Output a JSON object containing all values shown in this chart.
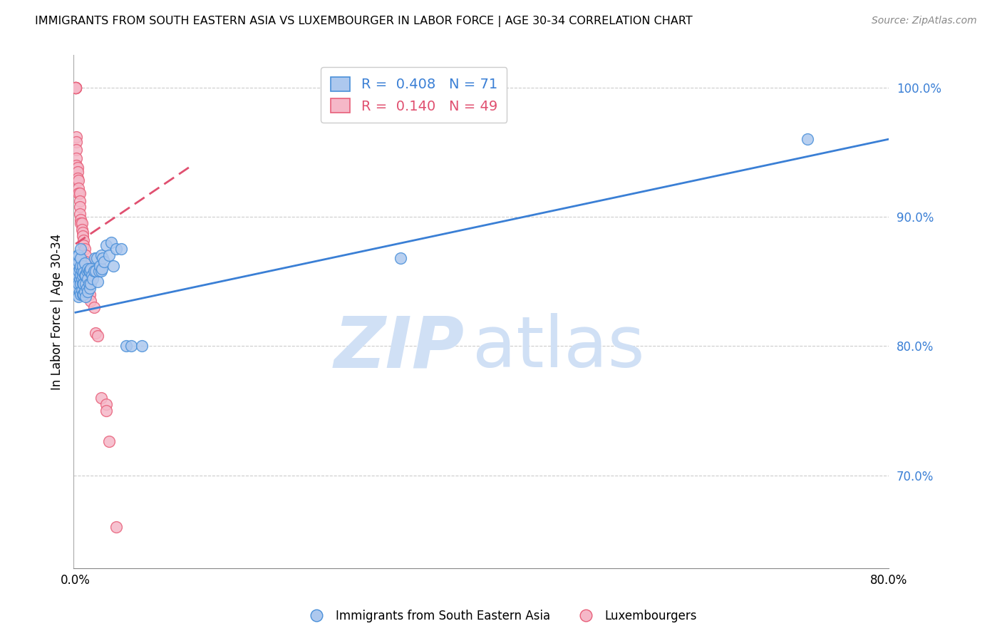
{
  "title": "IMMIGRANTS FROM SOUTH EASTERN ASIA VS LUXEMBOURGER IN LABOR FORCE | AGE 30-34 CORRELATION CHART",
  "source": "Source: ZipAtlas.com",
  "ylabel": "In Labor Force | Age 30-34",
  "right_yticks": [
    0.7,
    0.8,
    0.9,
    1.0
  ],
  "right_yticklabels": [
    "70.0%",
    "80.0%",
    "90.0%",
    "100.0%"
  ],
  "xlim": [
    -0.002,
    0.8
  ],
  "ylim": [
    0.628,
    1.025
  ],
  "xtick_positions": [
    0.0,
    0.1,
    0.2,
    0.3,
    0.4,
    0.5,
    0.6,
    0.7,
    0.8
  ],
  "xticklabels": [
    "0.0%",
    "",
    "",
    "",
    "",
    "",
    "",
    "",
    "80.0%"
  ],
  "blue_R": 0.408,
  "blue_N": 71,
  "pink_R": 0.14,
  "pink_N": 49,
  "blue_fill": "#adc8ee",
  "pink_fill": "#f5b8c8",
  "blue_edge": "#4a90d9",
  "pink_edge": "#e8607a",
  "legend_label_blue": "Immigrants from South Eastern Asia",
  "legend_label_pink": "Luxembourgers",
  "watermark_zip": "ZIP",
  "watermark_atlas": "atlas",
  "watermark_color": "#d0e0f5",
  "blue_line_color": "#3a7fd5",
  "pink_line_color": "#e05070",
  "blue_x": [
    0.001,
    0.001,
    0.002,
    0.002,
    0.002,
    0.003,
    0.003,
    0.003,
    0.003,
    0.003,
    0.004,
    0.004,
    0.004,
    0.005,
    0.005,
    0.005,
    0.005,
    0.005,
    0.005,
    0.006,
    0.006,
    0.006,
    0.007,
    0.007,
    0.007,
    0.007,
    0.008,
    0.008,
    0.008,
    0.009,
    0.009,
    0.009,
    0.01,
    0.01,
    0.01,
    0.011,
    0.011,
    0.012,
    0.012,
    0.012,
    0.013,
    0.013,
    0.014,
    0.014,
    0.015,
    0.015,
    0.016,
    0.017,
    0.018,
    0.019,
    0.02,
    0.021,
    0.022,
    0.023,
    0.024,
    0.025,
    0.025,
    0.026,
    0.027,
    0.028,
    0.03,
    0.033,
    0.035,
    0.037,
    0.04,
    0.045,
    0.05,
    0.055,
    0.065,
    0.32,
    0.72
  ],
  "blue_y": [
    0.853,
    0.862,
    0.845,
    0.855,
    0.87,
    0.838,
    0.848,
    0.858,
    0.865,
    0.87,
    0.842,
    0.852,
    0.86,
    0.84,
    0.848,
    0.855,
    0.862,
    0.868,
    0.875,
    0.843,
    0.852,
    0.858,
    0.84,
    0.848,
    0.855,
    0.862,
    0.84,
    0.848,
    0.857,
    0.842,
    0.855,
    0.864,
    0.838,
    0.848,
    0.855,
    0.845,
    0.858,
    0.842,
    0.852,
    0.86,
    0.848,
    0.858,
    0.845,
    0.858,
    0.848,
    0.86,
    0.855,
    0.852,
    0.858,
    0.868,
    0.858,
    0.868,
    0.85,
    0.858,
    0.862,
    0.858,
    0.87,
    0.86,
    0.868,
    0.865,
    0.878,
    0.87,
    0.88,
    0.862,
    0.875,
    0.875,
    0.8,
    0.8,
    0.8,
    0.868,
    0.96
  ],
  "pink_x": [
    0.0,
    0.0,
    0.0,
    0.0,
    0.0,
    0.0,
    0.0,
    0.0,
    0.0,
    0.0,
    0.001,
    0.001,
    0.001,
    0.001,
    0.001,
    0.002,
    0.002,
    0.002,
    0.003,
    0.003,
    0.003,
    0.004,
    0.004,
    0.004,
    0.004,
    0.005,
    0.005,
    0.006,
    0.006,
    0.007,
    0.007,
    0.008,
    0.008,
    0.009,
    0.01,
    0.01,
    0.011,
    0.012,
    0.013,
    0.014,
    0.015,
    0.018,
    0.02,
    0.022,
    0.025,
    0.03,
    0.03,
    0.033,
    0.04
  ],
  "pink_y": [
    1.0,
    1.0,
    1.0,
    1.0,
    1.0,
    1.0,
    1.0,
    1.0,
    1.0,
    1.0,
    0.962,
    0.958,
    0.952,
    0.945,
    0.94,
    0.938,
    0.935,
    0.93,
    0.928,
    0.922,
    0.918,
    0.918,
    0.912,
    0.908,
    0.902,
    0.898,
    0.895,
    0.895,
    0.89,
    0.888,
    0.885,
    0.882,
    0.878,
    0.875,
    0.87,
    0.865,
    0.86,
    0.852,
    0.848,
    0.84,
    0.835,
    0.83,
    0.81,
    0.808,
    0.76,
    0.755,
    0.75,
    0.726,
    0.66
  ],
  "blue_trend_x": [
    0.0,
    0.8
  ],
  "blue_trend_y": [
    0.826,
    0.96
  ],
  "pink_trend_x": [
    0.0,
    0.115
  ],
  "pink_trend_y": [
    0.879,
    0.94
  ]
}
